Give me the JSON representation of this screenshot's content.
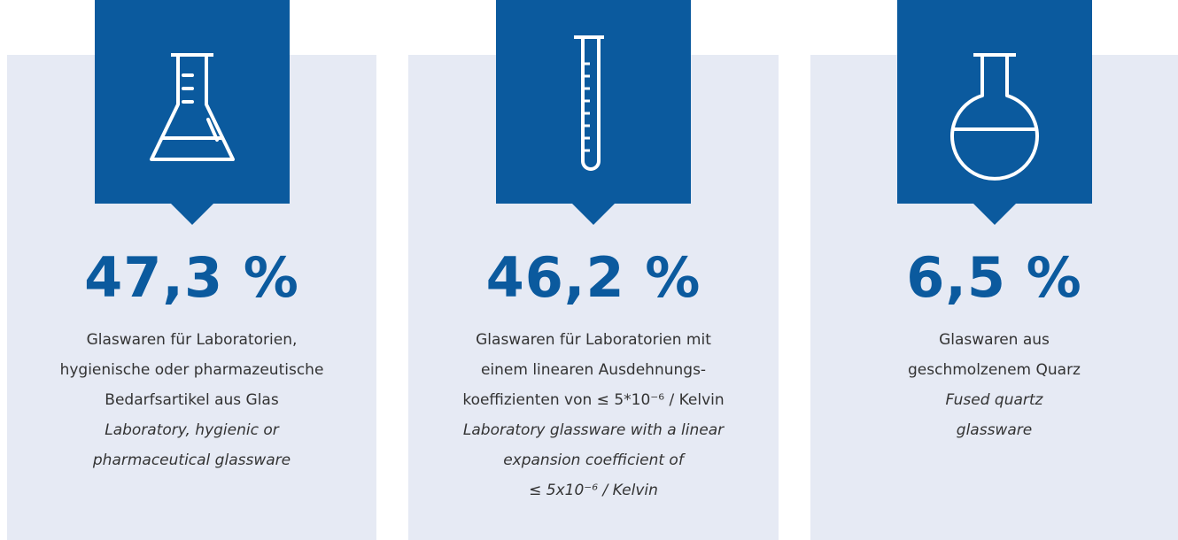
{
  "cards": [
    {
      "value": "47,3 %",
      "german": [
        "Glaswaren für Laboratorien,",
        "hygienische oder pharmazeutische",
        "Bedarfsartikel aus Glas"
      ],
      "english": [
        "Laboratory, hygienic or",
        "pharmaceutical glassware"
      ]
    },
    {
      "value": "46,2 %",
      "german": [
        "Glaswaren für Laboratorien mit",
        "einem linearen Ausdehnungs-",
        "koeffizienten von ≤ 5*10⁻⁶ / Kelvin"
      ],
      "english": [
        "Laboratory glassware with a linear",
        "expansion coefficient of",
        "≤ 5x10⁻⁶ / Kelvin"
      ]
    },
    {
      "value": "6,5 %",
      "german": [
        "Glaswaren aus",
        "geschmolzenem Quarz"
      ],
      "english": [
        "Fused quartz",
        "glassware"
      ]
    }
  ]
}
